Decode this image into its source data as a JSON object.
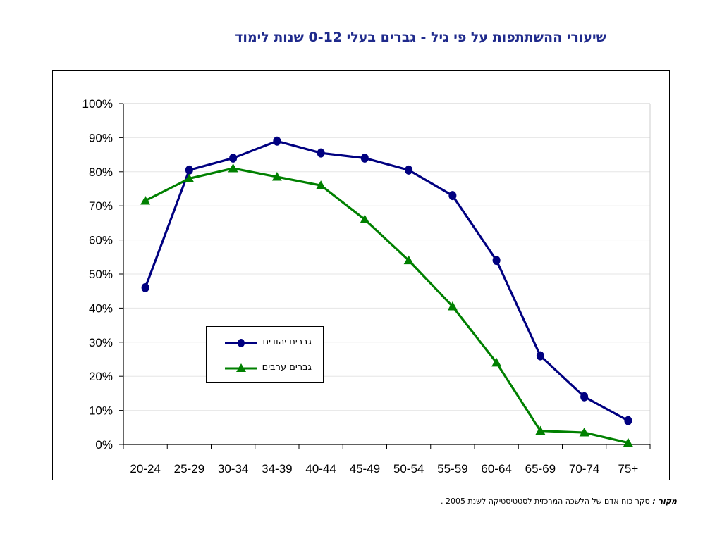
{
  "slide": {
    "title": "שיעורי ההשתתפות על פי גיל - גברים בעלי 0-12 שנות לימוד",
    "source_label": "מקור :",
    "source_text": "סקר כוח אדם של הלשכה המרכזית לסטטיסטיקה לשנת 2005 ."
  },
  "chart_data": {
    "type": "line",
    "title": "",
    "xlabel": "",
    "ylabel": "",
    "categories": [
      "20-24",
      "25-29",
      "30-34",
      "34-39",
      "40-44",
      "45-49",
      "50-54",
      "55-59",
      "60-64",
      "65-69",
      "70-74",
      "75+"
    ],
    "ylim": [
      0,
      100
    ],
    "yticks": [
      0,
      10,
      20,
      30,
      40,
      50,
      60,
      70,
      80,
      90,
      100
    ],
    "ytick_format": "%",
    "grid": true,
    "legend_position": "lower-left inside",
    "series": [
      {
        "name": "גברים יהודים",
        "color": "#000080",
        "marker": "circle",
        "values": [
          46,
          80.5,
          84,
          89,
          85.5,
          84,
          80.5,
          73,
          54,
          26,
          14,
          7
        ]
      },
      {
        "name": "גברים ערבים",
        "color": "#008000",
        "marker": "triangle",
        "values": [
          71.5,
          78,
          81,
          78.5,
          76,
          66,
          54,
          40.5,
          24,
          4,
          3.5,
          0.5
        ]
      }
    ]
  }
}
